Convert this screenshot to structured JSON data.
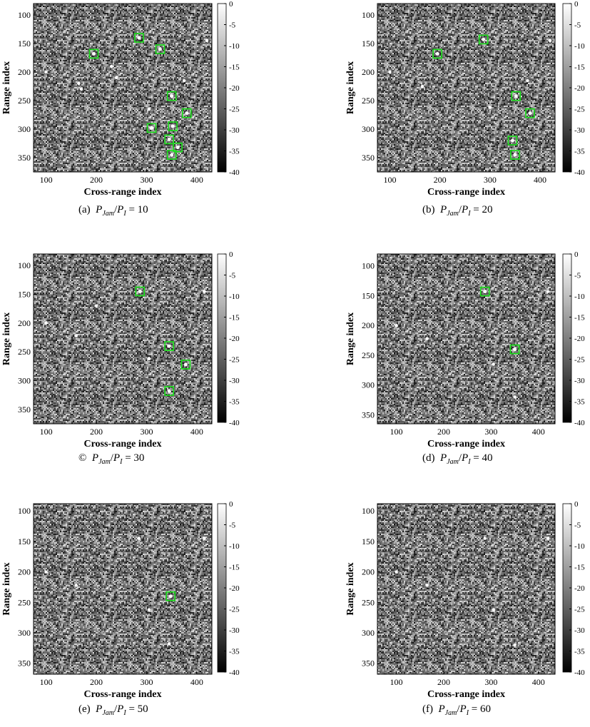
{
  "figure": {
    "colors": {
      "detection_box": "#18e018",
      "axis": "#000000",
      "background": "#ffffff"
    },
    "panels": [
      {
        "id": "a",
        "caption": {
          "label": "(a)",
          "ratio_num": "P",
          "ratio_num_sub": "Jam",
          "ratio_den": "P",
          "ratio_den_sub": "I",
          "value": "10"
        }
      },
      {
        "id": "b",
        "caption": {
          "label": "(b)",
          "ratio_num": "P",
          "ratio_num_sub": "Jam",
          "ratio_den": "P",
          "ratio_den_sub": "I",
          "value": "20"
        }
      },
      {
        "id": "c",
        "caption": {
          "label": "©",
          "ratio_num": "P",
          "ratio_num_sub": "Jam",
          "ratio_den": "P",
          "ratio_den_sub": "I",
          "value": "30"
        }
      },
      {
        "id": "d",
        "caption": {
          "label": "(d)",
          "ratio_num": "P",
          "ratio_num_sub": "Jam",
          "ratio_den": "P",
          "ratio_den_sub": "I",
          "value": "40"
        }
      },
      {
        "id": "e",
        "caption": {
          "label": "(e)",
          "ratio_num": "P",
          "ratio_num_sub": "Jam",
          "ratio_den": "P",
          "ratio_den_sub": "I",
          "value": "50"
        }
      },
      {
        "id": "f",
        "caption": {
          "label": "(f)",
          "ratio_num": "P",
          "ratio_num_sub": "Jam",
          "ratio_den": "P",
          "ratio_den_sub": "I",
          "value": "60"
        }
      }
    ]
  },
  "chart_data": [
    {
      "type": "heatmap",
      "panel": "a",
      "xlabel": "Cross-range index",
      "ylabel": "Range index",
      "xlim": [
        75,
        430
      ],
      "ylim": [
        80,
        375
      ],
      "xticks": [
        100,
        200,
        300,
        400
      ],
      "yticks": [
        100,
        150,
        200,
        250,
        300,
        350
      ],
      "colorbar": {
        "range": [
          -40,
          0
        ],
        "ticks": [
          0,
          -5,
          -10,
          -15,
          -20,
          -25,
          -30,
          -35,
          -40
        ]
      },
      "detections": [
        {
          "x": 285,
          "y": 140
        },
        {
          "x": 195,
          "y": 168
        },
        {
          "x": 327,
          "y": 160
        },
        {
          "x": 350,
          "y": 242
        },
        {
          "x": 380,
          "y": 272
        },
        {
          "x": 310,
          "y": 298
        },
        {
          "x": 352,
          "y": 295
        },
        {
          "x": 345,
          "y": 318
        },
        {
          "x": 362,
          "y": 332
        },
        {
          "x": 350,
          "y": 345
        }
      ],
      "bright_points": [
        {
          "x": 100,
          "y": 200
        },
        {
          "x": 165,
          "y": 220
        },
        {
          "x": 170,
          "y": 230
        },
        {
          "x": 240,
          "y": 210
        },
        {
          "x": 305,
          "y": 265
        },
        {
          "x": 375,
          "y": 215
        },
        {
          "x": 420,
          "y": 145
        },
        {
          "x": 230,
          "y": 190
        }
      ]
    },
    {
      "type": "heatmap",
      "panel": "b",
      "xlabel": "Cross-range index",
      "ylabel": "Range index",
      "xlim": [
        75,
        430
      ],
      "ylim": [
        80,
        375
      ],
      "xticks": [
        100,
        200,
        300,
        400
      ],
      "yticks": [
        100,
        150,
        200,
        250,
        300,
        350
      ],
      "colorbar": {
        "range": [
          -40,
          0
        ],
        "ticks": [
          0,
          -5,
          -10,
          -15,
          -20,
          -25,
          -30,
          -35,
          -40
        ]
      },
      "detections": [
        {
          "x": 287,
          "y": 143
        },
        {
          "x": 195,
          "y": 168
        },
        {
          "x": 352,
          "y": 242
        },
        {
          "x": 380,
          "y": 272
        },
        {
          "x": 345,
          "y": 320
        },
        {
          "x": 350,
          "y": 345
        }
      ],
      "bright_points": [
        {
          "x": 100,
          "y": 200
        },
        {
          "x": 165,
          "y": 225
        },
        {
          "x": 375,
          "y": 215
        },
        {
          "x": 300,
          "y": 262
        },
        {
          "x": 420,
          "y": 145
        }
      ]
    },
    {
      "type": "heatmap",
      "panel": "c",
      "xlabel": "Cross-range index",
      "ylabel": "Range index",
      "xlim": [
        75,
        430
      ],
      "ylim": [
        80,
        375
      ],
      "xticks": [
        100,
        200,
        300,
        400
      ],
      "yticks": [
        100,
        150,
        200,
        250,
        300,
        350
      ],
      "colorbar": {
        "range": [
          -40,
          0
        ],
        "ticks": [
          0,
          -5,
          -10,
          -15,
          -20,
          -25,
          -30,
          -35,
          -40
        ]
      },
      "detections": [
        {
          "x": 287,
          "y": 145
        },
        {
          "x": 345,
          "y": 240
        },
        {
          "x": 378,
          "y": 272
        },
        {
          "x": 345,
          "y": 318
        }
      ],
      "bright_points": [
        {
          "x": 100,
          "y": 200
        },
        {
          "x": 160,
          "y": 222
        },
        {
          "x": 305,
          "y": 262
        },
        {
          "x": 415,
          "y": 145
        },
        {
          "x": 200,
          "y": 170
        }
      ]
    },
    {
      "type": "heatmap",
      "panel": "d",
      "xlabel": "Cross-range index",
      "ylabel": "Range index",
      "xlim": [
        60,
        435
      ],
      "ylim": [
        80,
        365
      ],
      "xticks": [
        100,
        200,
        300,
        400
      ],
      "yticks": [
        100,
        150,
        200,
        250,
        300,
        350
      ],
      "colorbar": {
        "range": [
          -40,
          0
        ],
        "ticks": [
          0,
          -5,
          -10,
          -15,
          -20,
          -25,
          -30,
          -35,
          -40
        ]
      },
      "detections": [
        {
          "x": 287,
          "y": 143
        },
        {
          "x": 350,
          "y": 240
        }
      ],
      "bright_points": [
        {
          "x": 100,
          "y": 200
        },
        {
          "x": 165,
          "y": 222
        },
        {
          "x": 305,
          "y": 265
        },
        {
          "x": 350,
          "y": 320
        },
        {
          "x": 420,
          "y": 143
        }
      ]
    },
    {
      "type": "heatmap",
      "panel": "e",
      "xlabel": "Cross-range index",
      "ylabel": "Range index",
      "xlim": [
        75,
        430
      ],
      "ylim": [
        88,
        368
      ],
      "xticks": [
        100,
        200,
        300,
        400
      ],
      "yticks": [
        100,
        150,
        200,
        250,
        300,
        350
      ],
      "colorbar": {
        "range": [
          -40,
          0
        ],
        "ticks": [
          0,
          -5,
          -10,
          -15,
          -20,
          -25,
          -30,
          -35,
          -40
        ]
      },
      "detections": [
        {
          "x": 348,
          "y": 240
        }
      ],
      "bright_points": [
        {
          "x": 100,
          "y": 200
        },
        {
          "x": 160,
          "y": 222
        },
        {
          "x": 285,
          "y": 145
        },
        {
          "x": 305,
          "y": 262
        },
        {
          "x": 345,
          "y": 318
        },
        {
          "x": 415,
          "y": 145
        }
      ]
    },
    {
      "type": "heatmap",
      "panel": "f",
      "xlabel": "Cross-range index",
      "ylabel": "Range index",
      "xlim": [
        60,
        435
      ],
      "ylim": [
        88,
        368
      ],
      "xticks": [
        100,
        200,
        300,
        400
      ],
      "yticks": [
        100,
        150,
        200,
        250,
        300,
        350
      ],
      "colorbar": {
        "range": [
          -40,
          0
        ],
        "ticks": [
          0,
          -5,
          -10,
          -15,
          -20,
          -25,
          -30,
          -35,
          -40
        ]
      },
      "detections": [],
      "bright_points": [
        {
          "x": 100,
          "y": 200
        },
        {
          "x": 165,
          "y": 222
        },
        {
          "x": 287,
          "y": 145
        },
        {
          "x": 305,
          "y": 262
        },
        {
          "x": 350,
          "y": 320
        },
        {
          "x": 420,
          "y": 145
        }
      ]
    }
  ]
}
